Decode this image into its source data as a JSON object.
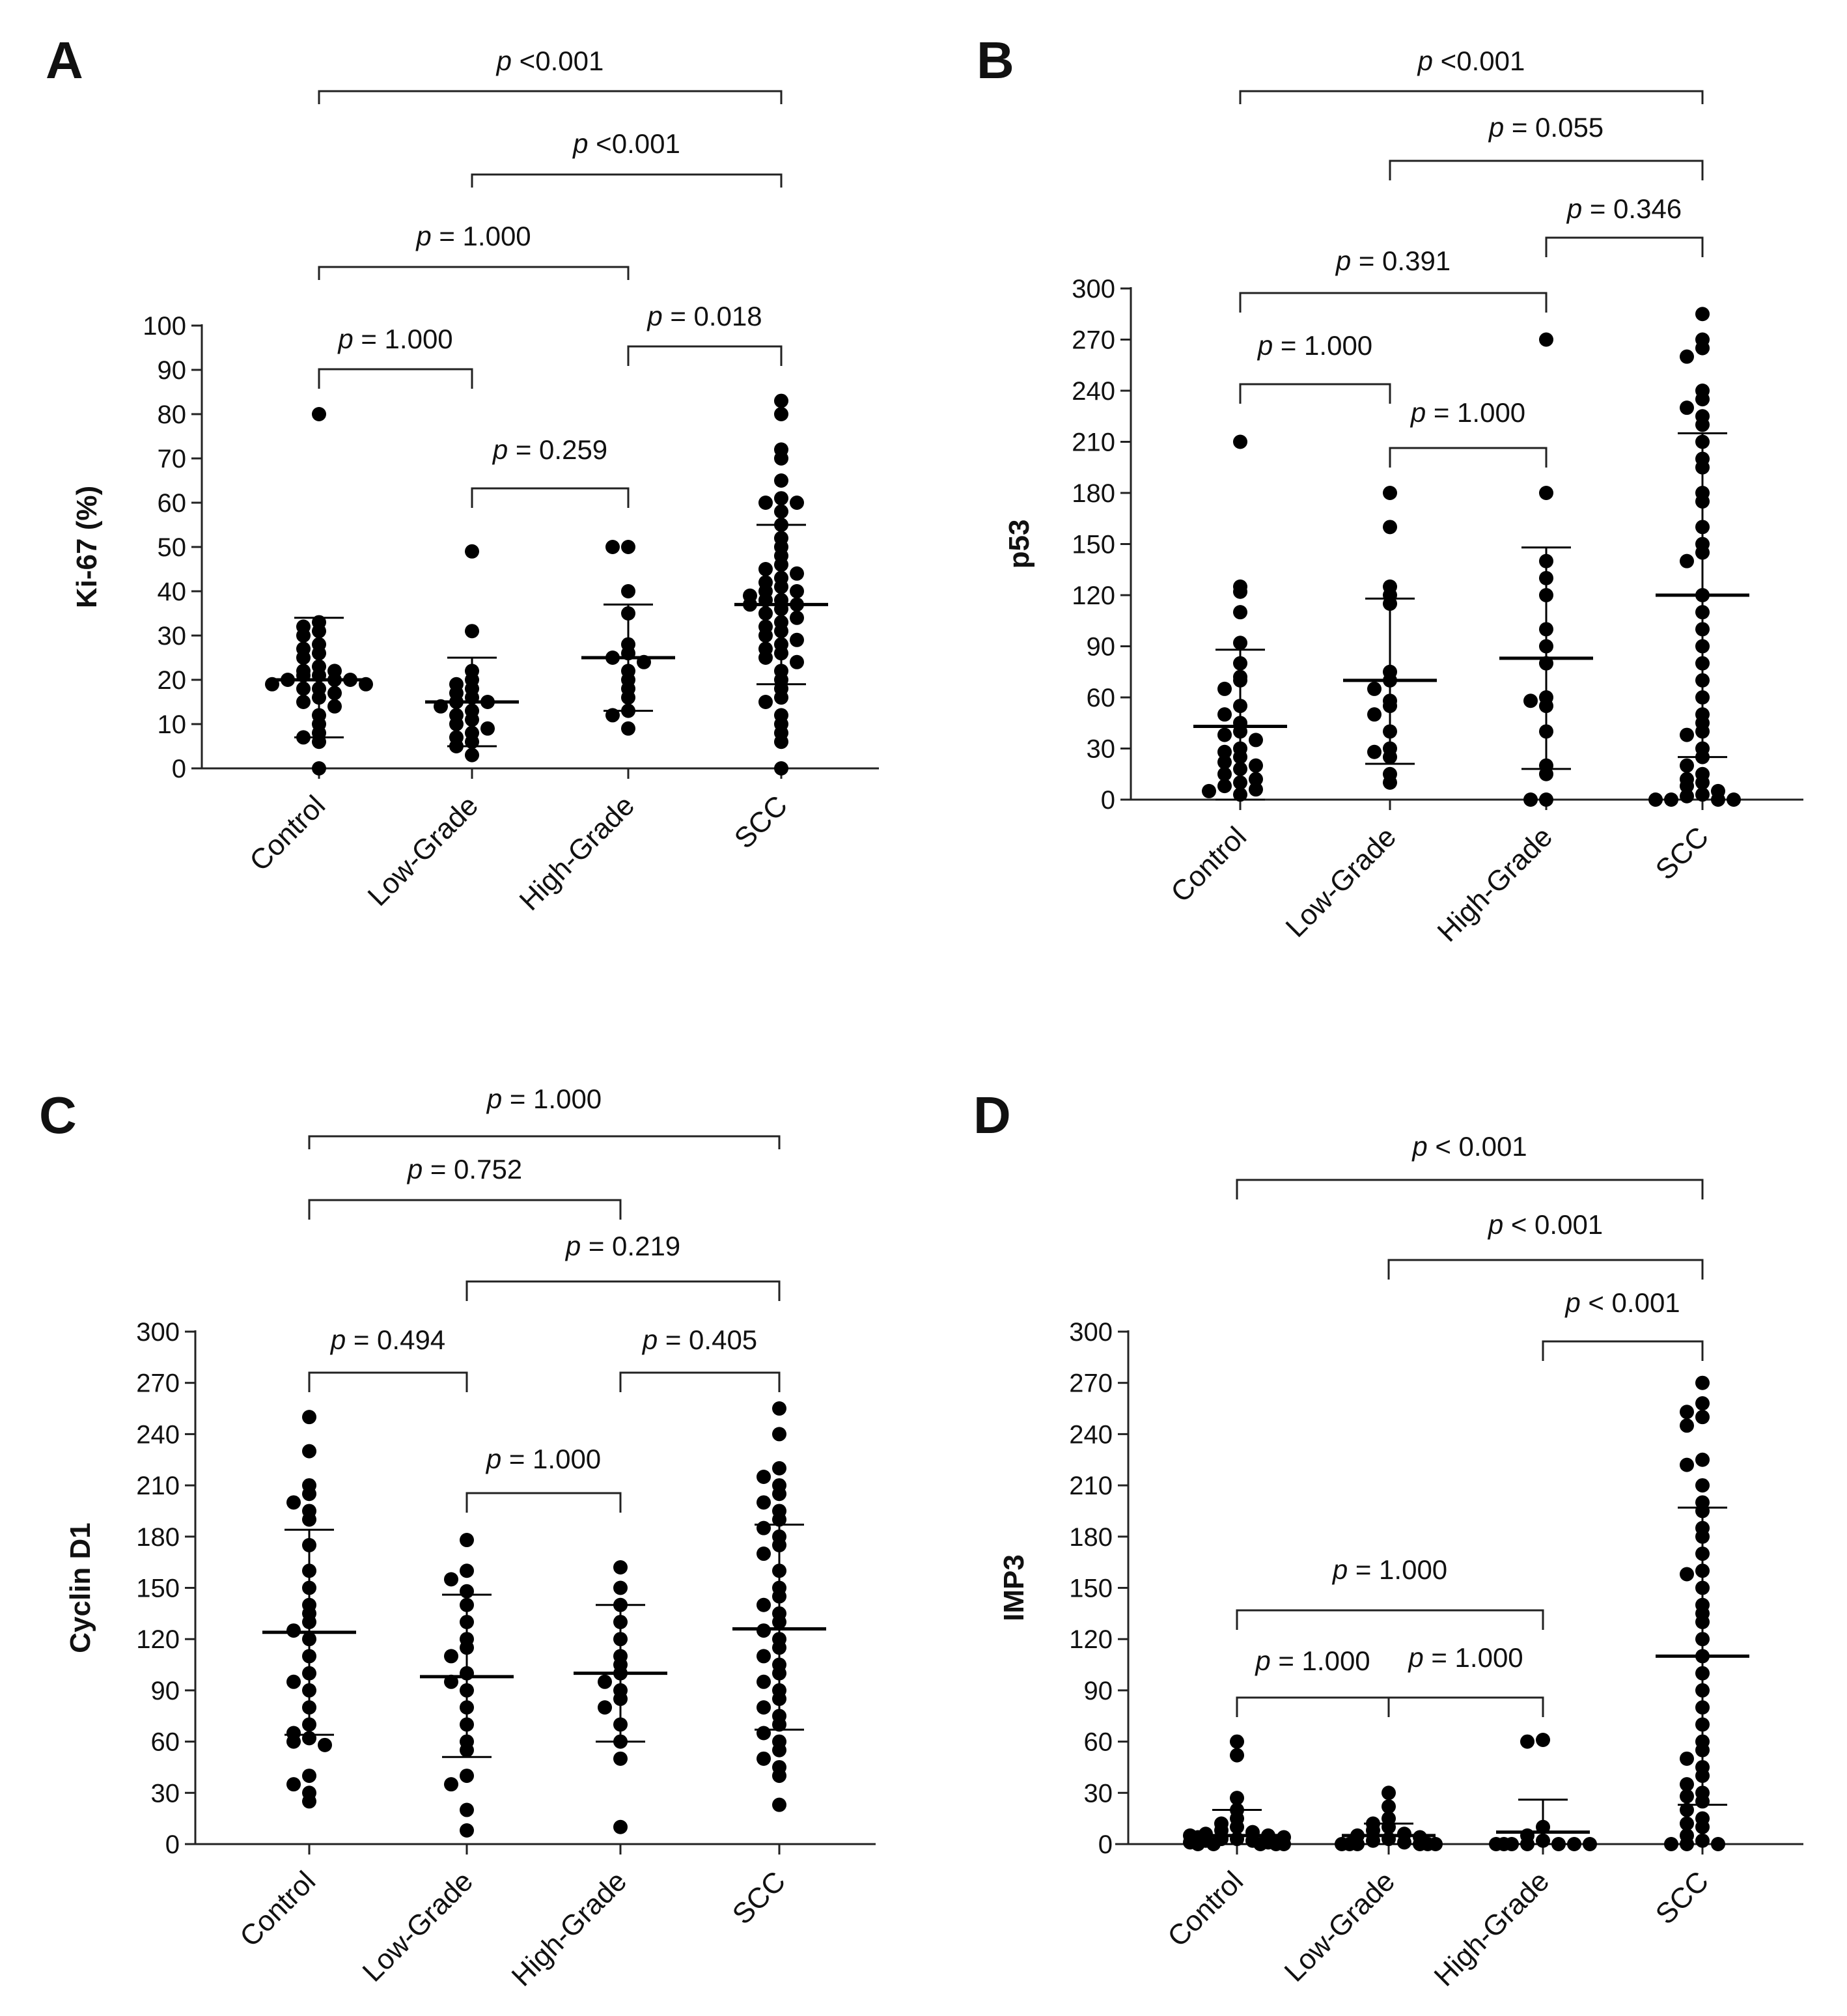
{
  "chart_data": [
    {
      "panel": "A",
      "type": "scatter",
      "ylabel": "Ki-67 (%)",
      "ylim": [
        0,
        100
      ],
      "yticks": [
        0,
        10,
        20,
        30,
        40,
        50,
        60,
        70,
        80,
        90,
        100
      ],
      "categories": [
        "Control",
        "Low-Grade",
        "High-Grade",
        "SCC"
      ],
      "summary": [
        {
          "group": "Control",
          "mean": 20,
          "sd_low": 7,
          "sd_high": 34
        },
        {
          "group": "Low-Grade",
          "mean": 15,
          "sd_low": 5,
          "sd_high": 25
        },
        {
          "group": "High-Grade",
          "mean": 25,
          "sd_low": 13,
          "sd_high": 37
        },
        {
          "group": "SCC",
          "mean": 37,
          "sd_low": 19,
          "sd_high": 55
        }
      ],
      "points": [
        [
          80,
          33,
          32,
          31,
          30,
          28,
          27,
          26,
          25,
          23,
          22,
          22,
          21,
          21,
          20,
          20,
          20,
          19,
          19,
          18,
          18,
          17,
          16,
          15,
          14,
          12,
          10,
          8,
          7,
          6,
          0
        ],
        [
          49,
          31,
          22,
          20,
          19,
          18,
          17,
          16,
          15,
          15,
          14,
          13,
          12,
          11,
          10,
          9,
          8,
          7,
          6,
          5,
          3
        ],
        [
          50,
          50,
          40,
          35,
          28,
          26,
          25,
          24,
          22,
          20,
          18,
          16,
          13,
          12,
          9
        ],
        [
          83,
          80,
          72,
          70,
          65,
          61,
          60,
          60,
          58,
          55,
          52,
          50,
          48,
          46,
          45,
          44,
          43,
          42,
          41,
          40,
          40,
          39,
          38,
          38,
          37,
          37,
          36,
          35,
          34,
          33,
          32,
          31,
          30,
          29,
          28,
          27,
          26,
          25,
          24,
          22,
          20,
          18,
          16,
          15,
          12,
          10,
          8,
          6,
          0
        ]
      ],
      "comparisons": [
        {
          "groups": [
            "Control",
            "SCC"
          ],
          "label": "p <0.001"
        },
        {
          "groups": [
            "Low-Grade",
            "SCC"
          ],
          "label": "p <0.001"
        },
        {
          "groups": [
            "Control",
            "High-Grade"
          ],
          "label": "p = 1.000"
        },
        {
          "groups": [
            "High-Grade",
            "SCC"
          ],
          "label": "p = 0.018"
        },
        {
          "groups": [
            "Control",
            "Low-Grade"
          ],
          "label": "p = 1.000"
        },
        {
          "groups": [
            "Low-Grade",
            "High-Grade"
          ],
          "label": "p = 0.259"
        }
      ]
    },
    {
      "panel": "B",
      "type": "scatter",
      "ylabel": "p53",
      "ylim": [
        0,
        300
      ],
      "yticks": [
        0,
        30,
        60,
        90,
        120,
        150,
        180,
        210,
        240,
        270,
        300
      ],
      "categories": [
        "Control",
        "Low-Grade",
        "High-Grade",
        "SCC"
      ],
      "summary": [
        {
          "group": "Control",
          "mean": 43,
          "sd_low": 0,
          "sd_high": 88
        },
        {
          "group": "Low-Grade",
          "mean": 70,
          "sd_low": 21,
          "sd_high": 118
        },
        {
          "group": "High-Grade",
          "mean": 83,
          "sd_low": 18,
          "sd_high": 148
        },
        {
          "group": "SCC",
          "mean": 120,
          "sd_low": 25,
          "sd_high": 215
        }
      ],
      "points": [
        [
          210,
          125,
          122,
          110,
          92,
          80,
          72,
          70,
          65,
          55,
          50,
          45,
          40,
          38,
          35,
          30,
          28,
          25,
          22,
          20,
          18,
          15,
          12,
          10,
          8,
          6,
          5,
          3
        ],
        [
          180,
          160,
          125,
          120,
          115,
          75,
          70,
          65,
          58,
          55,
          50,
          40,
          30,
          28,
          25,
          15,
          10
        ],
        [
          270,
          180,
          140,
          130,
          120,
          100,
          90,
          80,
          60,
          58,
          55,
          40,
          20,
          15,
          0,
          0
        ],
        [
          285,
          270,
          265,
          260,
          240,
          235,
          230,
          225,
          220,
          210,
          200,
          195,
          180,
          175,
          160,
          150,
          145,
          140,
          120,
          110,
          100,
          90,
          80,
          70,
          60,
          50,
          45,
          40,
          38,
          30,
          25,
          20,
          15,
          12,
          10,
          8,
          5,
          3,
          2,
          0,
          0,
          0,
          0
        ]
      ],
      "comparisons": [
        {
          "groups": [
            "Control",
            "SCC"
          ],
          "label": "p <0.001"
        },
        {
          "groups": [
            "Low-Grade",
            "SCC"
          ],
          "label": "p = 0.055"
        },
        {
          "groups": [
            "High-Grade",
            "SCC"
          ],
          "label": "p = 0.346"
        },
        {
          "groups": [
            "Control",
            "High-Grade"
          ],
          "label": "p = 0.391"
        },
        {
          "groups": [
            "Control",
            "Low-Grade"
          ],
          "label": "p = 1.000"
        },
        {
          "groups": [
            "Low-Grade",
            "High-Grade"
          ],
          "label": "p = 1.000"
        }
      ]
    },
    {
      "panel": "C",
      "type": "scatter",
      "ylabel": "Cyclin D1",
      "ylim": [
        0,
        300
      ],
      "yticks": [
        0,
        30,
        60,
        90,
        120,
        150,
        180,
        210,
        240,
        270,
        300
      ],
      "categories": [
        "Control",
        "Low-Grade",
        "High-Grade",
        "SCC"
      ],
      "summary": [
        {
          "group": "Control",
          "mean": 124,
          "sd_low": 64,
          "sd_high": 184
        },
        {
          "group": "Low-Grade",
          "mean": 98,
          "sd_low": 51,
          "sd_high": 146
        },
        {
          "group": "High-Grade",
          "mean": 100,
          "sd_low": 60,
          "sd_high": 140
        },
        {
          "group": "SCC",
          "mean": 126,
          "sd_low": 67,
          "sd_high": 187
        }
      ],
      "points": [
        [
          250,
          230,
          210,
          205,
          200,
          195,
          190,
          175,
          160,
          150,
          140,
          135,
          130,
          125,
          120,
          110,
          100,
          95,
          90,
          80,
          70,
          65,
          62,
          60,
          58,
          40,
          35,
          30,
          25
        ],
        [
          178,
          160,
          155,
          148,
          140,
          130,
          120,
          115,
          110,
          100,
          95,
          90,
          80,
          70,
          60,
          55,
          40,
          35,
          20,
          8
        ],
        [
          162,
          150,
          140,
          130,
          120,
          110,
          105,
          100,
          95,
          90,
          85,
          80,
          70,
          60,
          50,
          10
        ],
        [
          255,
          240,
          220,
          215,
          210,
          205,
          200,
          195,
          190,
          185,
          180,
          175,
          170,
          160,
          150,
          145,
          140,
          135,
          130,
          125,
          120,
          115,
          110,
          105,
          100,
          95,
          90,
          85,
          80,
          75,
          70,
          65,
          60,
          55,
          50,
          45,
          40,
          23
        ]
      ],
      "comparisons": [
        {
          "groups": [
            "Control",
            "SCC"
          ],
          "label": "p = 1.000"
        },
        {
          "groups": [
            "Control",
            "High-Grade"
          ],
          "label": "p = 0.752"
        },
        {
          "groups": [
            "Low-Grade",
            "SCC"
          ],
          "label": "p = 0.219"
        },
        {
          "groups": [
            "Control",
            "Low-Grade"
          ],
          "label": "p = 0.494"
        },
        {
          "groups": [
            "High-Grade",
            "SCC"
          ],
          "label": "p = 0.405"
        },
        {
          "groups": [
            "Low-Grade",
            "High-Grade"
          ],
          "label": "p = 1.000"
        }
      ]
    },
    {
      "panel": "D",
      "type": "scatter",
      "ylabel": "IMP3",
      "ylim": [
        0,
        300
      ],
      "yticks": [
        0,
        30,
        60,
        90,
        120,
        150,
        180,
        210,
        240,
        270,
        300
      ],
      "categories": [
        "Control",
        "Low-Grade",
        "High-Grade",
        "SCC"
      ],
      "summary": [
        {
          "group": "Control",
          "mean": 5,
          "sd_low": 0,
          "sd_high": 20
        },
        {
          "group": "Low-Grade",
          "mean": 5,
          "sd_low": 0,
          "sd_high": 12
        },
        {
          "group": "High-Grade",
          "mean": 7,
          "sd_low": 0,
          "sd_high": 26
        },
        {
          "group": "SCC",
          "mean": 110,
          "sd_low": 23,
          "sd_high": 197
        }
      ],
      "points": [
        [
          60,
          52,
          27,
          20,
          15,
          12,
          10,
          8,
          7,
          6,
          5,
          5,
          4,
          4,
          3,
          3,
          2,
          2,
          1,
          1,
          0,
          0,
          0,
          0,
          0
        ],
        [
          30,
          22,
          15,
          12,
          10,
          8,
          6,
          5,
          4,
          3,
          2,
          1,
          0,
          0,
          0,
          0,
          0,
          0
        ],
        [
          61,
          60,
          10,
          5,
          2,
          0,
          0,
          0,
          0,
          0,
          0,
          0
        ],
        [
          270,
          258,
          253,
          250,
          245,
          225,
          222,
          210,
          200,
          195,
          185,
          180,
          170,
          160,
          158,
          150,
          140,
          135,
          130,
          120,
          110,
          100,
          90,
          80,
          70,
          60,
          55,
          50,
          45,
          40,
          35,
          30,
          28,
          25,
          20,
          15,
          12,
          10,
          5,
          2,
          0,
          0,
          0
        ]
      ],
      "comparisons": [
        {
          "groups": [
            "Control",
            "SCC"
          ],
          "label": "p < 0.001"
        },
        {
          "groups": [
            "Low-Grade",
            "SCC"
          ],
          "label": "p < 0.001"
        },
        {
          "groups": [
            "High-Grade",
            "SCC"
          ],
          "label": "p < 0.001"
        },
        {
          "groups": [
            "Control",
            "High-Grade"
          ],
          "label": "p = 1.000"
        },
        {
          "groups": [
            "Control",
            "Low-Grade"
          ],
          "label": "p = 1.000"
        },
        {
          "groups": [
            "Low-Grade",
            "High-Grade"
          ],
          "label": "p = 1.000"
        }
      ]
    }
  ]
}
